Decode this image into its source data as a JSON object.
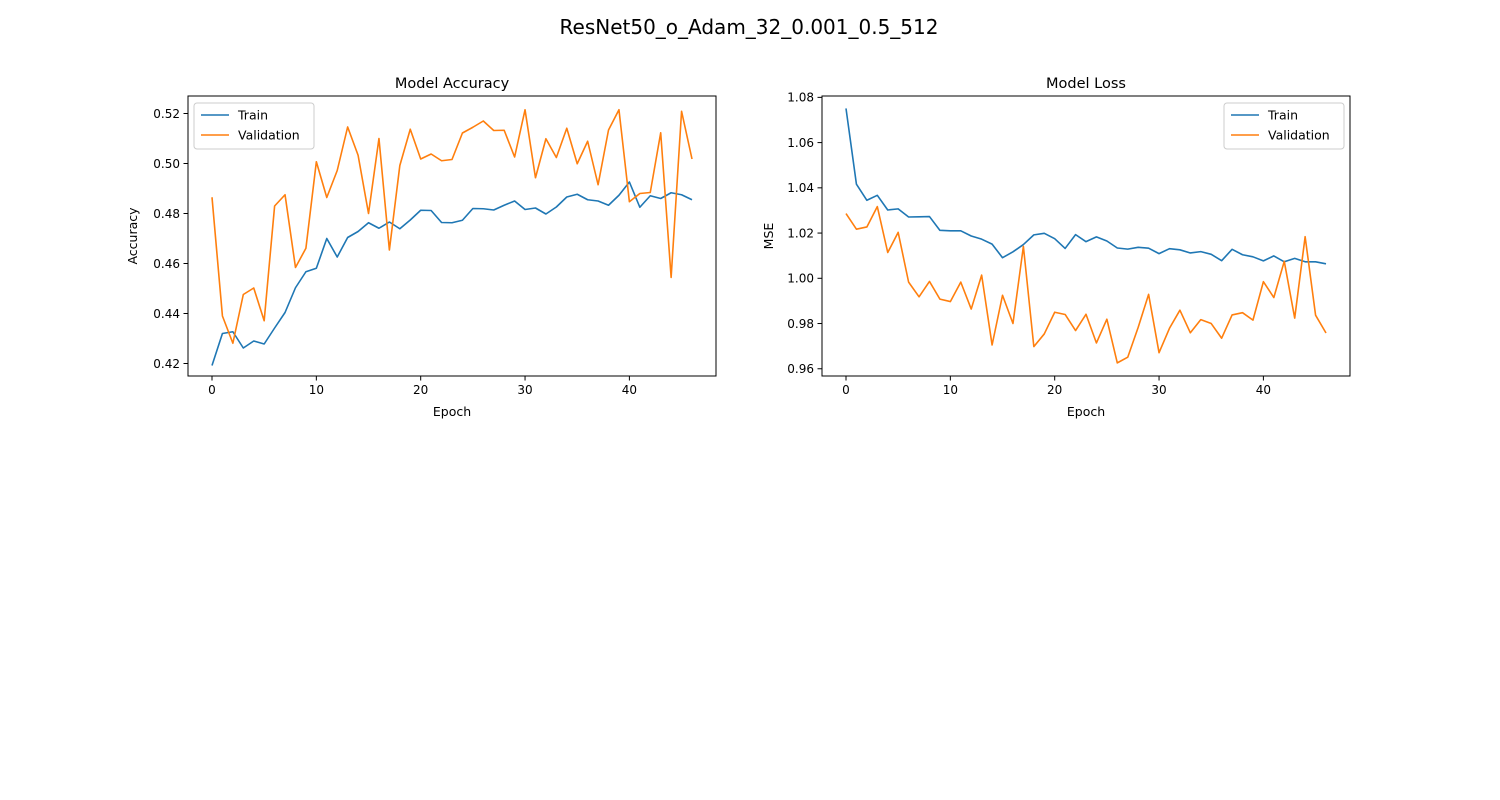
{
  "figure": {
    "suptitle": "ResNet50_o_Adam_32_0.001_0.5_512"
  },
  "colors": {
    "train": "#1f77b4",
    "validation": "#ff7f0e",
    "axis": "#000000",
    "background": "#ffffff"
  },
  "chart_data": [
    {
      "type": "line",
      "title": "Model Accuracy",
      "xlabel": "Epoch",
      "ylabel": "Accuracy",
      "xlim": [
        -2.3,
        48.3
      ],
      "ylim": [
        0.415,
        0.527
      ],
      "xticks": [
        0,
        10,
        20,
        30,
        40
      ],
      "xtick_labels": [
        "0",
        "10",
        "20",
        "30",
        "40"
      ],
      "yticks": [
        0.42,
        0.44,
        0.46,
        0.48,
        0.5,
        0.52
      ],
      "ytick_labels": [
        "0.42",
        "0.44",
        "0.46",
        "0.48",
        "0.50",
        "0.52"
      ],
      "legend_position": "upper-left",
      "grid": false,
      "x": [
        0,
        1,
        2,
        3,
        4,
        5,
        6,
        7,
        8,
        9,
        10,
        11,
        12,
        13,
        14,
        15,
        16,
        17,
        18,
        19,
        20,
        21,
        22,
        23,
        24,
        25,
        26,
        27,
        28,
        29,
        30,
        31,
        32,
        33,
        34,
        35,
        36,
        37,
        38,
        39,
        40,
        41,
        42,
        43,
        44,
        45,
        46
      ],
      "series": [
        {
          "name": "Train",
          "color_key": "train",
          "values": [
            0.4192,
            0.432,
            0.4327,
            0.4262,
            0.429,
            0.4278,
            0.4342,
            0.4404,
            0.4503,
            0.4567,
            0.4581,
            0.47,
            0.4626,
            0.4704,
            0.4728,
            0.4763,
            0.4741,
            0.4766,
            0.4739,
            0.4774,
            0.4813,
            0.4812,
            0.4764,
            0.4763,
            0.4773,
            0.482,
            0.4819,
            0.4814,
            0.4833,
            0.485,
            0.4816,
            0.4822,
            0.4798,
            0.4826,
            0.4866,
            0.4877,
            0.4855,
            0.485,
            0.4833,
            0.4873,
            0.4926,
            0.4825,
            0.4871,
            0.486,
            0.4883,
            0.4875,
            0.4855
          ]
        },
        {
          "name": "Validation",
          "color_key": "validation",
          "values": [
            0.4865,
            0.439,
            0.4281,
            0.4476,
            0.4502,
            0.4371,
            0.483,
            0.4875,
            0.4584,
            0.4661,
            0.5007,
            0.4864,
            0.4972,
            0.5146,
            0.5033,
            0.48,
            0.51,
            0.4654,
            0.4992,
            0.5137,
            0.5018,
            0.5038,
            0.5011,
            0.5016,
            0.5122,
            0.5145,
            0.517,
            0.5132,
            0.5133,
            0.5026,
            0.5215,
            0.4943,
            0.5099,
            0.5024,
            0.5141,
            0.4999,
            0.5089,
            0.4915,
            0.5134,
            0.5215,
            0.4847,
            0.488,
            0.4884,
            0.5123,
            0.4544,
            0.5209,
            0.5018
          ]
        }
      ]
    },
    {
      "type": "line",
      "title": "Model Loss",
      "xlabel": "Epoch",
      "ylabel": "MSE",
      "xlim": [
        -2.3,
        48.3
      ],
      "ylim": [
        0.9568,
        1.0806
      ],
      "xticks": [
        0,
        10,
        20,
        30,
        40
      ],
      "xtick_labels": [
        "0",
        "10",
        "20",
        "30",
        "40"
      ],
      "yticks": [
        0.96,
        0.98,
        1.0,
        1.02,
        1.04,
        1.06,
        1.08
      ],
      "ytick_labels": [
        "0.96",
        "0.98",
        "1.00",
        "1.02",
        "1.04",
        "1.06",
        "1.08"
      ],
      "legend_position": "upper-right",
      "grid": false,
      "x": [
        0,
        1,
        2,
        3,
        4,
        5,
        6,
        7,
        8,
        9,
        10,
        11,
        12,
        13,
        14,
        15,
        16,
        17,
        18,
        19,
        20,
        21,
        22,
        23,
        24,
        25,
        26,
        27,
        28,
        29,
        30,
        31,
        32,
        33,
        34,
        35,
        36,
        37,
        38,
        39,
        40,
        41,
        42,
        43,
        44,
        45,
        46
      ],
      "series": [
        {
          "name": "Train",
          "color_key": "train",
          "values": [
            1.0751,
            1.0416,
            1.0345,
            1.0367,
            1.0302,
            1.0307,
            1.0271,
            1.0272,
            1.0273,
            1.0212,
            1.021,
            1.021,
            1.0187,
            1.0173,
            1.0151,
            1.0091,
            1.0117,
            1.0149,
            1.0192,
            1.0199,
            1.0175,
            1.0132,
            1.0193,
            1.0162,
            1.0183,
            1.0165,
            1.0134,
            1.0129,
            1.0137,
            1.0133,
            1.0109,
            1.0131,
            1.0126,
            1.0112,
            1.0118,
            1.0106,
            1.0078,
            1.0128,
            1.0104,
            1.0095,
            1.0077,
            1.0099,
            1.0073,
            1.0088,
            1.0073,
            1.0073,
            1.0064
          ]
        },
        {
          "name": "Validation",
          "color_key": "validation",
          "values": [
            1.0286,
            1.0217,
            1.0227,
            1.0317,
            1.0114,
            1.0203,
            0.9983,
            0.9918,
            0.9986,
            0.9908,
            0.9897,
            0.9983,
            0.9864,
            1.0014,
            0.9705,
            0.9925,
            0.98,
            1.0141,
            0.9698,
            0.9754,
            0.985,
            0.984,
            0.9769,
            0.9841,
            0.9714,
            0.9819,
            0.9626,
            0.9651,
            0.9783,
            0.9929,
            0.9671,
            0.9779,
            0.9859,
            0.9759,
            0.9817,
            0.98,
            0.9735,
            0.9838,
            0.9848,
            0.9815,
            0.9985,
            0.9915,
            1.0075,
            0.9824,
            1.0184,
            0.9837,
            0.9758
          ]
        }
      ]
    }
  ]
}
